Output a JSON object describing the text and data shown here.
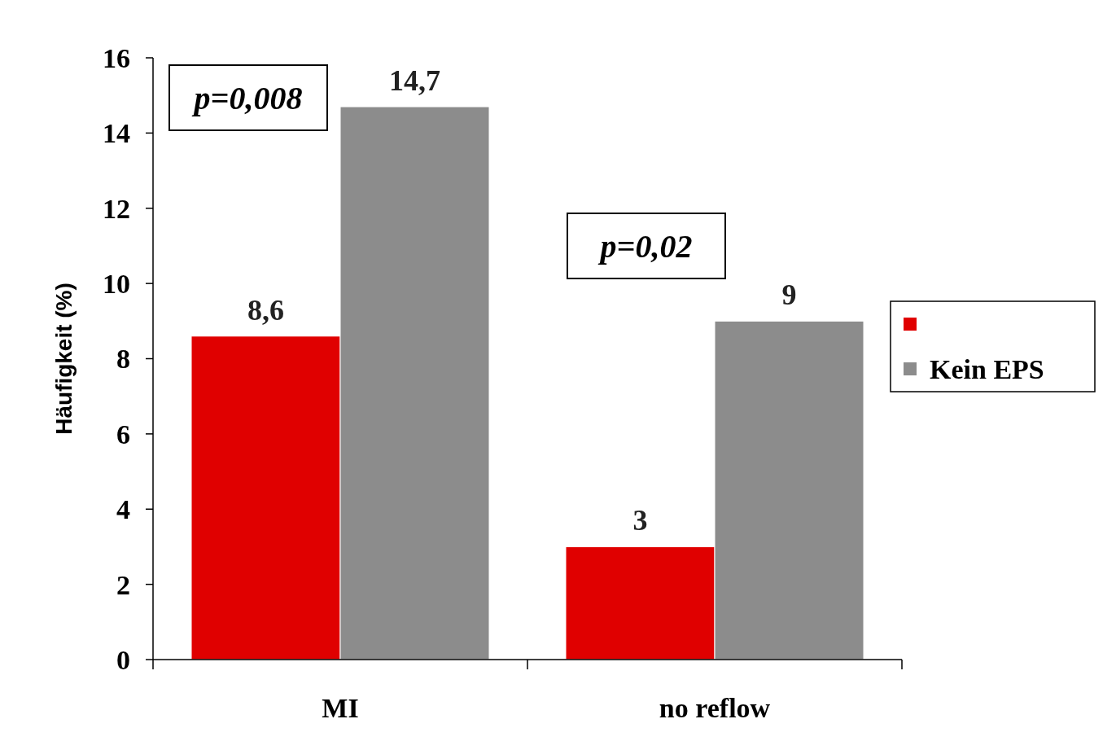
{
  "chart_data": {
    "type": "bar",
    "ylabel": "Häufigkeit (%)",
    "categories": [
      "MI",
      "no reflow"
    ],
    "series": [
      {
        "color": "#e00000",
        "values": [
          8.6,
          3
        ],
        "value_labels": [
          "8,6",
          "3"
        ]
      },
      {
        "name": "Kein EPS",
        "color": "#8c8c8c",
        "values": [
          14.7,
          9
        ],
        "value_labels": [
          "14,7",
          "9"
        ]
      }
    ],
    "ylim": [
      0,
      16
    ],
    "yticks": [
      0,
      2,
      4,
      6,
      8,
      10,
      12,
      14,
      16
    ],
    "legend": "right",
    "grid": false,
    "annotations": [
      "p=0,008",
      "p=0,02"
    ]
  }
}
